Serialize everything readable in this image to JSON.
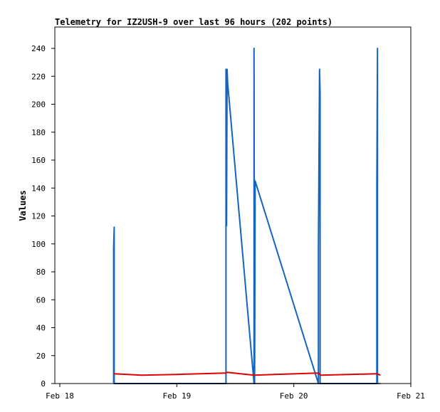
{
  "chart_data": {
    "type": "line",
    "title": "Telemetry for IZ2USH-9 over last 96 hours (202 points)",
    "xlabel": "",
    "ylabel": "Values",
    "x_ticks": [
      "Feb 18",
      "Feb 19",
      "Feb 20",
      "Feb 21"
    ],
    "xlim": [
      "Feb 18",
      "Feb 21"
    ],
    "ylim": [
      0,
      255
    ],
    "y_ticks": [
      0,
      20,
      40,
      60,
      80,
      100,
      120,
      140,
      160,
      180,
      200,
      220,
      240
    ],
    "grid": false,
    "colors": {
      "blue": "#1565c0",
      "red": "#e00000",
      "black": "#000000"
    },
    "series": [
      {
        "color": "#1565c0",
        "points": [
          [
            0.46,
            0
          ],
          [
            0.46,
            97
          ],
          [
            0.465,
            112
          ],
          [
            0.465,
            0
          ],
          [
            1.42,
            0
          ],
          [
            1.42,
            225
          ],
          [
            1.425,
            113
          ],
          [
            1.43,
            225
          ],
          [
            1.435,
            215
          ],
          [
            1.66,
            0
          ],
          [
            1.66,
            240
          ],
          [
            1.665,
            0
          ],
          [
            1.67,
            145
          ],
          [
            2.21,
            0
          ],
          [
            2.21,
            97
          ],
          [
            2.22,
            225
          ],
          [
            2.225,
            208
          ],
          [
            2.225,
            0
          ],
          [
            2.71,
            0
          ],
          [
            2.71,
            145
          ],
          [
            2.715,
            240
          ],
          [
            2.715,
            0
          ]
        ]
      },
      {
        "color": "#e00000",
        "points": [
          [
            0.46,
            7
          ],
          [
            0.7,
            6
          ],
          [
            1.0,
            6.5
          ],
          [
            1.42,
            7.5
          ],
          [
            1.43,
            8
          ],
          [
            1.66,
            6
          ],
          [
            2.21,
            7.5
          ],
          [
            2.23,
            6
          ],
          [
            2.71,
            7
          ],
          [
            2.74,
            6
          ]
        ]
      },
      {
        "color": "#000000",
        "points": [
          [
            0.46,
            0
          ],
          [
            2.74,
            0
          ]
        ]
      }
    ]
  }
}
